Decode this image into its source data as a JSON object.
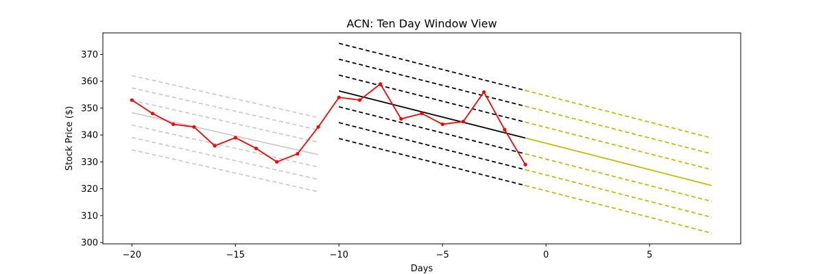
{
  "chart_data": {
    "type": "line",
    "title": "ACN: Ten Day Window View",
    "xlabel": "Days",
    "ylabel": "Stock Price ($)",
    "xlim": [
      -21.4,
      9.4
    ],
    "ylim": [
      299.5,
      378
    ],
    "xticks": [
      -20,
      -15,
      -10,
      -5,
      0,
      5
    ],
    "xtick_labels": [
      "−20",
      "−15",
      "−10",
      "−5",
      "0",
      "5"
    ],
    "yticks": [
      300,
      310,
      320,
      330,
      340,
      350,
      360,
      370
    ],
    "grid": false,
    "colors": {
      "price": "#ff0000",
      "past_window": "#cccccc",
      "current_window": "#000000",
      "forecast": "#bfbf00"
    },
    "series": [
      {
        "role": "price",
        "x": [
          -20,
          -19,
          -18,
          -17,
          -16,
          -15,
          -14,
          -13,
          -12,
          -11,
          -10,
          -9,
          -8,
          -7,
          -6,
          -5,
          -4,
          -3,
          -2,
          -1
        ],
        "y": [
          353,
          348,
          344,
          343,
          336,
          339,
          335,
          330,
          333,
          343,
          354,
          353,
          359,
          346,
          348,
          344,
          345,
          356,
          342,
          329
        ],
        "markers": true
      }
    ],
    "channels": [
      {
        "role": "past_window",
        "x": [
          -20,
          -11
        ],
        "center": [
          348.3,
          332.7
        ],
        "offsets": [
          -13.8,
          -9.2,
          -4.6,
          4.6,
          9.2,
          13.8
        ]
      },
      {
        "role": "current_window",
        "x": [
          -10,
          -1
        ],
        "center": [
          356.4,
          338.9
        ],
        "offsets": [
          -17.7,
          -11.8,
          -5.9,
          5.9,
          11.8,
          17.7
        ]
      },
      {
        "role": "forecast",
        "x": [
          -1,
          8
        ],
        "center": [
          338.9,
          321.2
        ],
        "offsets": [
          -17.7,
          -11.8,
          -5.9,
          5.9,
          11.8,
          17.7
        ]
      }
    ]
  }
}
